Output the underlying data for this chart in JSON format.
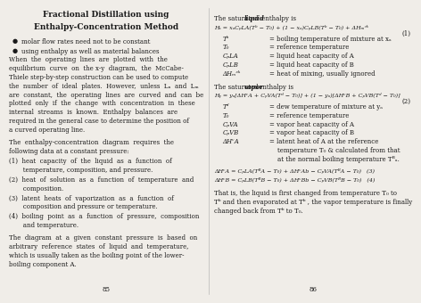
{
  "background_color": "#f0ede8",
  "page_left": "85",
  "page_right": "86"
}
